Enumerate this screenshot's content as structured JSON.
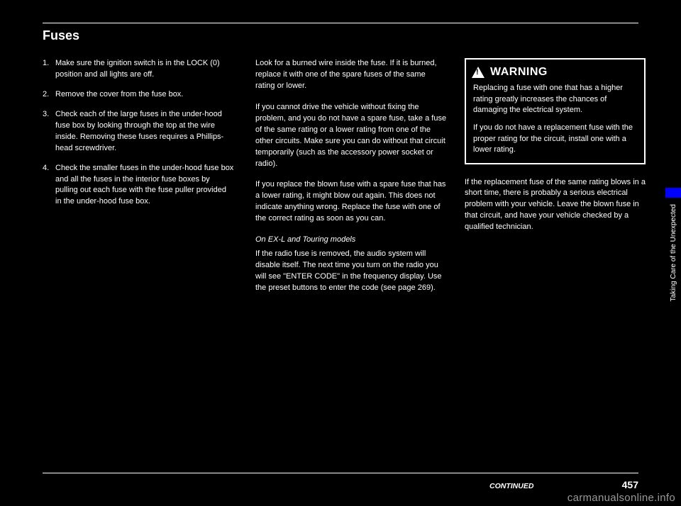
{
  "colors": {
    "background": "#000000",
    "text": "#ffffff",
    "accent": "#0000ff",
    "watermark": "#999999"
  },
  "title": "Fuses",
  "list": [
    {
      "n": "1.",
      "t": "Make sure the ignition switch is in the LOCK (0) position and all lights are off."
    },
    {
      "n": "2.",
      "t": "Remove the cover from the fuse box."
    },
    {
      "n": "3.",
      "t": "Check each of the large fuses in the under-hood fuse box by looking through the top at the wire inside. Removing these fuses requires a Phillips-head screwdriver."
    },
    {
      "n": "4.",
      "t": "Check the smaller fuses in the under-hood fuse box and all the fuses in the interior fuse boxes by pulling out each fuse with the fuse puller provided in the under-hood fuse box."
    }
  ],
  "col2": {
    "p1": "Look for a burned wire inside the fuse. If it is burned, replace it with one of the spare fuses of the same rating or lower.",
    "p2": "If you cannot drive the vehicle without fixing the problem, and you do not have a spare fuse, take a fuse of the same rating or a lower rating from one of the other circuits. Make sure you can do without that circuit temporarily (such as the accessory power socket or radio).",
    "p3": "If you replace the blown fuse with a spare fuse that has a lower rating, it might blow out again. This does not indicate anything wrong. Replace the fuse with one of the correct rating as soon as you can.",
    "subhead": "On EX-L and Touring models",
    "sub_p": "If the radio fuse is removed, the audio system will disable itself. The next time you turn on the radio you will see \"ENTER CODE\" in the frequency display. Use the preset buttons to enter the code (see page     269)."
  },
  "warning": {
    "label": "WARNING",
    "body1": "Replacing a fuse with one that has a higher rating greatly increases the chances of damaging the electrical system.",
    "body2": "If you do not have a replacement fuse with the proper rating for the circuit, install one with a lower rating."
  },
  "col3_p": "If the replacement fuse of the same rating blows in a short time, there is probably a serious electrical problem with your vehicle. Leave the blown fuse in that circuit, and have your vehicle checked by a qualified technician.",
  "sidebar_text": "Taking Care of the Unexpected",
  "footer": {
    "continued": "CONTINUED",
    "pagenum": "457"
  },
  "watermark": "carmanualsonline.info"
}
